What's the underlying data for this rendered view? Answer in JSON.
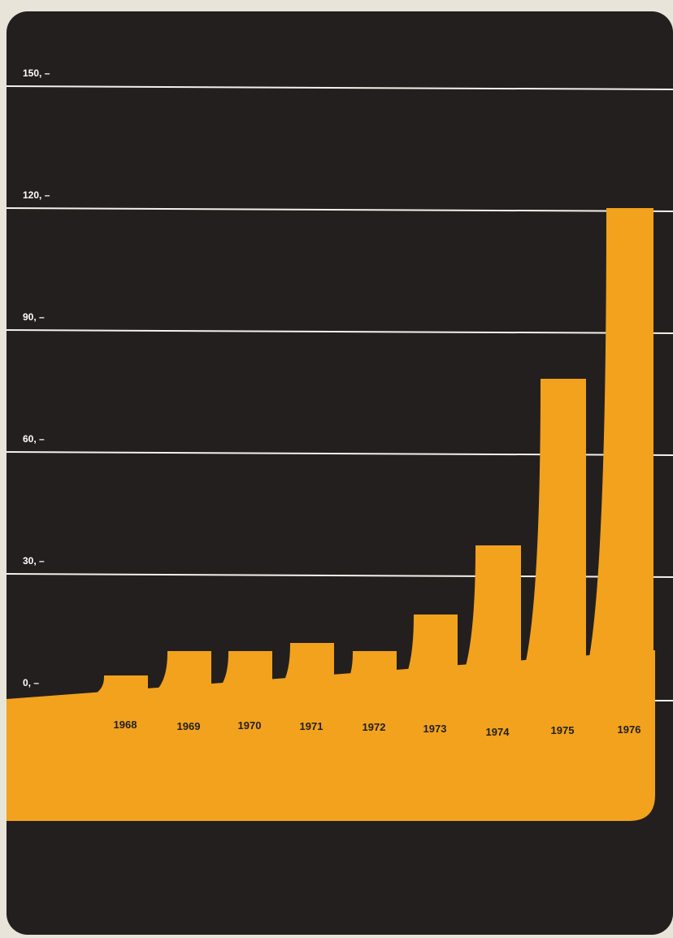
{
  "chart_data": {
    "type": "bar",
    "categories": [
      "1968",
      "1969",
      "1970",
      "1971",
      "1972",
      "1973",
      "1974",
      "1975",
      "1976"
    ],
    "values": [
      5,
      11,
      11,
      13,
      11,
      20,
      37,
      78,
      120
    ],
    "ylim": [
      0,
      150
    ],
    "yticks": [
      0,
      30,
      60,
      90,
      120,
      150
    ],
    "ytick_labels": [
      "0, –",
      "30, –",
      "60, –",
      "90, –",
      "120, –",
      "150, –"
    ],
    "grid": true,
    "colors": {
      "bar": "#f2a21d",
      "background": "#231f1e",
      "grid": "#f3f1ea"
    }
  }
}
